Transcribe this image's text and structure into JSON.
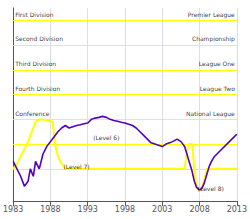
{
  "chart_data": {
    "type": "line",
    "xlim": [
      1983,
      2013
    ],
    "xticks": [
      1983,
      1988,
      1993,
      1998,
      2003,
      2008,
      2013
    ],
    "ylim": [
      8.8,
      1.0
    ],
    "yticks": [],
    "tick_labels": "x",
    "grid": true,
    "hlines": {
      "values": [
        1.5,
        2.5,
        3.5,
        4.5,
        5.5,
        6.5,
        7.5
      ],
      "color": "#ffff00"
    },
    "left_annotations": [
      {
        "y": 1.25,
        "text": "First Division"
      },
      {
        "y": 2.25,
        "text": "Second Division"
      },
      {
        "y": 3.25,
        "text": "Third Division"
      },
      {
        "y": 4.25,
        "text": "Fourth Division"
      },
      {
        "y": 5.25,
        "text": "Conference"
      }
    ],
    "right_annotations": [
      {
        "y": 1.25,
        "text": "Premier League"
      },
      {
        "y": 2.25,
        "text": "Championship"
      },
      {
        "y": 3.25,
        "text": "League One"
      },
      {
        "y": 4.25,
        "text": "League Two"
      },
      {
        "y": 5.25,
        "text": "National League"
      }
    ],
    "annotations": [
      {
        "x": 1995.5,
        "y": 6.25,
        "text": "(Level 6)"
      },
      {
        "x": 1991.5,
        "y": 7.4,
        "text": "(Level 7)"
      },
      {
        "x": 2009.5,
        "y": 8.3,
        "text": "(Level 8)"
      }
    ],
    "series": [
      {
        "color": "#ffff00",
        "x": [
          1983,
          1983.5,
          1984,
          1984.5,
          1985,
          1985.5,
          1986,
          1986.5,
          1987,
          1987.5,
          1988,
          1988.3,
          1988.6,
          1989,
          1989.5,
          1990,
          1990.5,
          1991,
          1992,
          1993,
          1994,
          1995,
          1996,
          1997,
          1998,
          1999,
          2000,
          2001,
          2002,
          2003,
          2004,
          2005,
          2006,
          2006.3,
          2006.6,
          2007,
          2007.3,
          2007.5,
          2007.7,
          2008,
          2008.3,
          2008.6,
          2009,
          2009.5,
          2010,
          2011,
          2012,
          2013
        ],
        "values": [
          7.5,
          7.3,
          7.0,
          6.7,
          6.4,
          6.0,
          5.6,
          5.5,
          5.52,
          5.55,
          5.58,
          5.6,
          6.5,
          7.0,
          7.3,
          7.5,
          7.5,
          7.5,
          7.5,
          7.5,
          7.5,
          7.5,
          7.5,
          7.5,
          7.5,
          7.5,
          7.5,
          7.5,
          7.5,
          7.5,
          7.5,
          7.5,
          7.5,
          6.8,
          6.5,
          6.5,
          7.5,
          8.0,
          8.3,
          8.35,
          8.3,
          8.0,
          7.5,
          7.5,
          7.5,
          7.5,
          7.5,
          7.5
        ]
      },
      {
        "color": "#5500bb",
        "x": [
          1983,
          1984,
          1984.5,
          1985,
          1985.3,
          1985.7,
          1986,
          1986.5,
          1987,
          1987.5,
          1988,
          1988.5,
          1989,
          1989.5,
          1990,
          1990.5,
          1991,
          1991.5,
          1992,
          1992.5,
          1993,
          1993.5,
          1994,
          1994.5,
          1995,
          1995.5,
          1996,
          1996.5,
          1997,
          1997.5,
          1998,
          1998.5,
          1999,
          1999.5,
          2000,
          2000.5,
          2001,
          2001.5,
          2002,
          2002.5,
          2003,
          2003.5,
          2004,
          2004.5,
          2005,
          2005.5,
          2006,
          2006.3,
          2006.6,
          2007,
          2007.3,
          2007.6,
          2008,
          2008.3,
          2008.6,
          2009,
          2009.3,
          2009.6,
          2010,
          2010.5,
          2011,
          2011.5,
          2012,
          2012.5,
          2013
        ],
        "values": [
          7.2,
          7.8,
          8.2,
          8.0,
          7.5,
          7.8,
          7.2,
          7.5,
          6.9,
          6.6,
          6.4,
          6.2,
          6.0,
          5.85,
          5.75,
          5.85,
          5.8,
          5.75,
          5.72,
          5.68,
          5.65,
          5.5,
          5.45,
          5.42,
          5.38,
          5.42,
          5.5,
          5.55,
          5.58,
          5.62,
          5.65,
          5.7,
          5.75,
          5.85,
          6.0,
          6.15,
          6.3,
          6.45,
          6.5,
          6.55,
          6.6,
          6.5,
          6.45,
          6.38,
          6.3,
          6.4,
          6.6,
          6.9,
          7.2,
          7.6,
          8.0,
          8.25,
          8.35,
          8.3,
          8.1,
          7.7,
          7.4,
          7.2,
          7.0,
          6.85,
          6.7,
          6.55,
          6.4,
          6.25,
          6.1
        ]
      }
    ]
  }
}
